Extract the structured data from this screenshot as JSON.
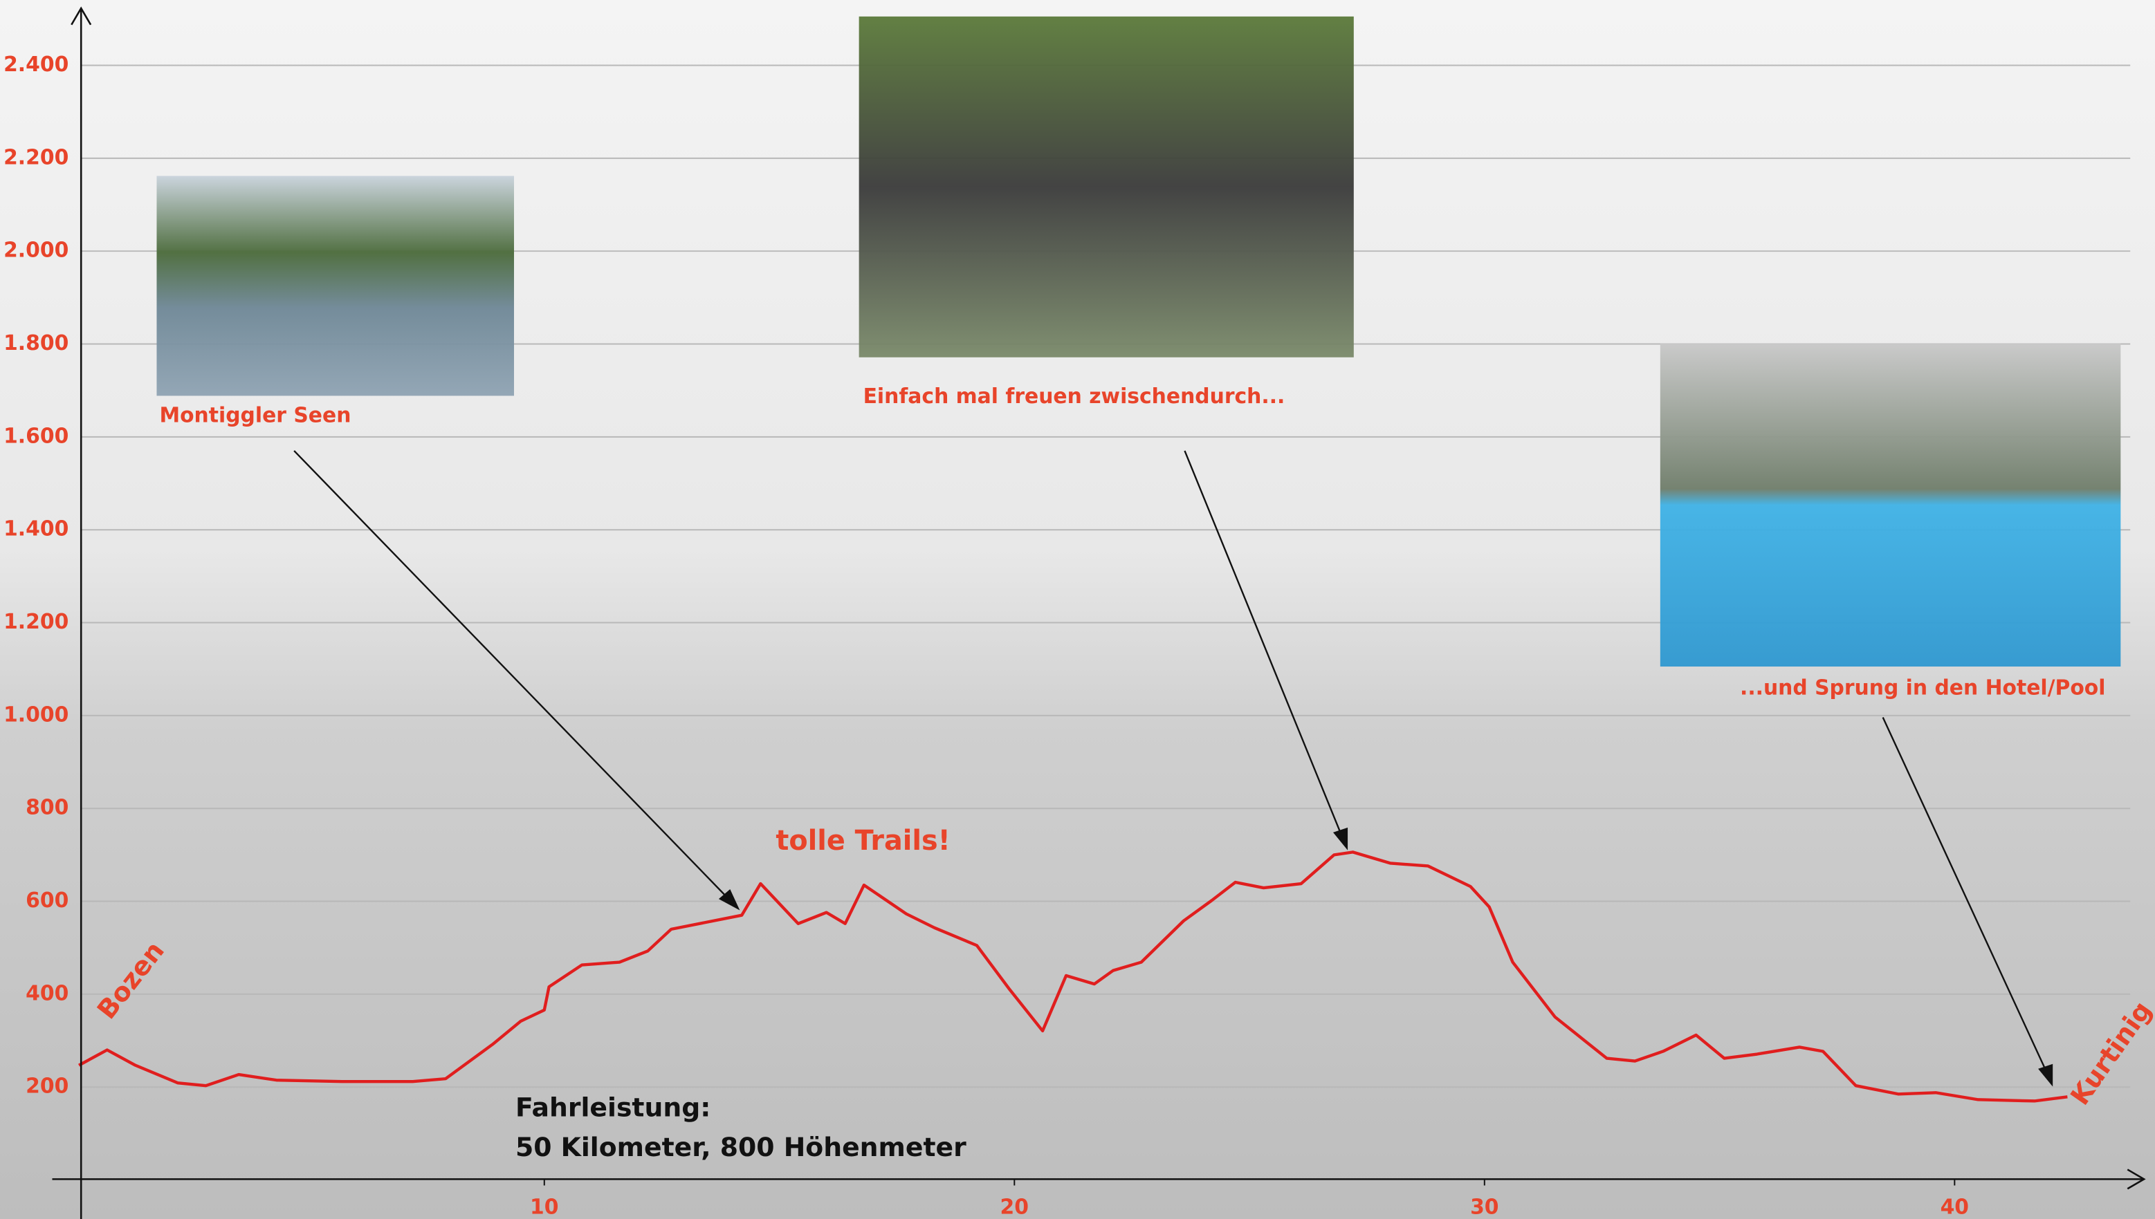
{
  "chart_data": {
    "type": "line",
    "x": [
      0.1,
      0.7,
      1.3,
      2.2,
      2.8,
      3.5,
      4.3,
      5.7,
      7.2,
      7.9,
      8.9,
      9.5,
      10.0,
      10.1,
      10.8,
      11.6,
      12.2,
      12.7,
      13.6,
      14.2,
      14.6,
      15.4,
      16.0,
      16.4,
      16.8,
      17.7,
      18.3,
      19.2,
      19.9,
      20.6,
      21.1,
      21.7,
      22.1,
      22.7,
      23.6,
      24.2,
      24.7,
      25.3,
      26.1,
      26.8,
      27.2,
      28.0,
      28.8,
      29.7,
      30.1,
      30.6,
      31.5,
      32.6,
      33.2,
      33.8,
      34.5,
      35.1,
      35.8,
      36.7,
      37.2,
      37.9,
      38.8,
      39.6,
      40.5,
      41.7,
      42.4
    ],
    "values": [
      247,
      280,
      247,
      209,
      203,
      227,
      215,
      212,
      212,
      218,
      292,
      342,
      366,
      416,
      463,
      469,
      493,
      540,
      558,
      570,
      638,
      552,
      576,
      552,
      635,
      573,
      543,
      505,
      410,
      321,
      440,
      422,
      451,
      469,
      558,
      602,
      641,
      629,
      638,
      700,
      706,
      682,
      676,
      632,
      588,
      469,
      351,
      262,
      256,
      277,
      312,
      262,
      271,
      286,
      277,
      203,
      185,
      188,
      173,
      170,
      179
    ],
    "color": "#e01e1e",
    "xlim": [
      0,
      44
    ],
    "ylim": [
      0,
      2520
    ],
    "xticks": [
      10,
      20,
      30,
      40
    ],
    "yticks": [
      200,
      400,
      600,
      800,
      {
        "value": 1000,
        "label": "1.000"
      },
      {
        "value": 1200,
        "label": "1.200"
      },
      {
        "value": 1400,
        "label": "1.400"
      },
      {
        "value": 1600,
        "label": "1.600"
      },
      {
        "value": 1800,
        "label": "1.800"
      },
      {
        "value": 2000,
        "label": "2.000"
      },
      {
        "value": 2200,
        "label": "2.200"
      },
      {
        "value": 2400,
        "label": "2.400"
      }
    ],
    "grid": true,
    "annotations": [
      "Bozen",
      "Kurtinig",
      "tolle Trails!",
      "Montiggler Seen",
      "Einfach mal freuen zwischendurch...",
      "...und Sprung in den Hotel/Pool",
      "Fahrleistung:",
      "50 Kilometer, 800 Höhenmeter"
    ]
  }
}
